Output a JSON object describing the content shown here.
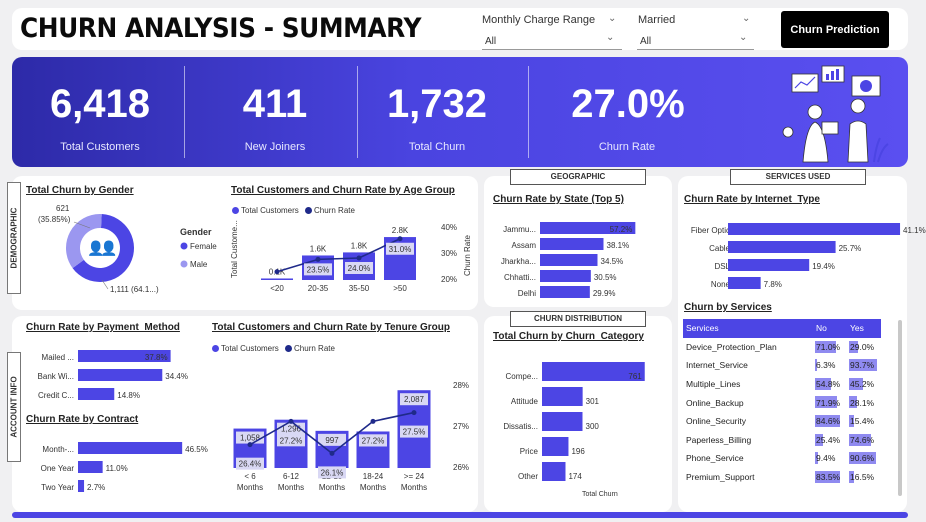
{
  "header": {
    "title": "CHURN ANALYSIS - SUMMARY",
    "slicer1_label": "Monthly Charge Range",
    "slicer1_value": "All",
    "slicer2_label": "Married",
    "slicer2_value": "All",
    "button_label": "Churn Prediction"
  },
  "kpis": [
    {
      "value": "6,418",
      "label": "Total Customers"
    },
    {
      "value": "411",
      "label": "New Joiners"
    },
    {
      "value": "1,732",
      "label": "Total Churn"
    },
    {
      "value": "27.0%",
      "label": "Churn Rate"
    }
  ],
  "sections": {
    "demographic": "DEMOGRAPHIC",
    "account_info": "ACCOUNT INFO",
    "geographic": "GEOGRAPHIC",
    "services_used": "SERVICES USED",
    "churn_distribution": "CHURN DISTRIBUTION"
  },
  "chart_data": [
    {
      "id": "gender",
      "type": "pie",
      "title": "Total Churn by Gender",
      "legend_title": "Gender",
      "categories": [
        "Female",
        "Male"
      ],
      "values": [
        1111,
        621
      ],
      "labels": [
        "1,111 (64.1...)",
        "621\n(35.85%)"
      ],
      "colors": [
        "#4c45e4",
        "#9b97f0"
      ]
    },
    {
      "id": "age",
      "type": "bar",
      "title": "Total Customers and Churn Rate by Age Group",
      "ylabel": "Total Custome...",
      "y2label": "Churn Rate",
      "categories": [
        "<20",
        "20-35",
        "35-50",
        ">50"
      ],
      "series": [
        {
          "name": "Total Customers",
          "values": [
            100,
            1600,
            1800,
            2800
          ],
          "labels": [
            "0.1K",
            "1.6K",
            "1.8K",
            "2.8K"
          ]
        },
        {
          "name": "Churn Rate",
          "values": [
            19,
            23.5,
            24.0,
            31.0
          ],
          "labels": [
            "",
            "23.5%",
            "24.0%",
            "31.0%"
          ]
        }
      ],
      "y2ticks": [
        "40%",
        "30%",
        "20%"
      ],
      "ylim": [
        0,
        3000
      ]
    },
    {
      "id": "payment",
      "type": "bar",
      "title": "Churn Rate by Payment_Method",
      "categories": [
        "Mailed ...",
        "Bank Wi...",
        "Credit C..."
      ],
      "values": [
        37.8,
        34.4,
        14.8
      ],
      "labels": [
        "37.8%",
        "34.4%",
        "14.8%"
      ]
    },
    {
      "id": "contract",
      "type": "bar",
      "title": "Churn Rate by Contract",
      "categories": [
        "Month-...",
        "One Year",
        "Two Year"
      ],
      "values": [
        46.5,
        11.0,
        2.7
      ],
      "labels": [
        "46.5%",
        "11.0%",
        "2.7%"
      ]
    },
    {
      "id": "tenure",
      "type": "bar",
      "title": "Total Customers and Churn Rate by Tenure Group",
      "categories": [
        "< 6\nMonths",
        "6-12\nMonths",
        "12-18\nMonths",
        "18-24\nMonths",
        ">= 24\nMonths"
      ],
      "series": [
        {
          "name": "Total Customers",
          "values": [
            1058,
            1296,
            997,
            980,
            2087
          ],
          "labels": [
            "1,058",
            "1,296",
            "997",
            "980",
            "2,087"
          ]
        },
        {
          "name": "Churn Rate",
          "values": [
            26.4,
            27.2,
            26.1,
            27.2,
            27.5
          ],
          "labels": [
            "26.4%",
            "27.2%",
            "26.1%",
            "27.2%",
            "27.5%"
          ]
        }
      ],
      "y2ticks": [
        "28%",
        "27%",
        "26%"
      ],
      "ylim": [
        0,
        2200
      ]
    },
    {
      "id": "state",
      "type": "bar",
      "title": "Churn Rate by State (Top 5)",
      "categories": [
        "Jammu...",
        "Assam",
        "Jharkha...",
        "Chhatti...",
        "Delhi"
      ],
      "values": [
        57.2,
        38.1,
        34.5,
        30.5,
        29.9
      ],
      "labels": [
        "57.2%",
        "38.1%",
        "34.5%",
        "30.5%",
        "29.9%"
      ]
    },
    {
      "id": "churn_category",
      "type": "bar",
      "title": "Total Churn by Churn_Category",
      "xlabel": "Total Churn",
      "categories": [
        "Compe...",
        "Attitude",
        "Dissatis...",
        "Price",
        "Other"
      ],
      "values": [
        761,
        301,
        300,
        196,
        174
      ],
      "labels": [
        "761",
        "301",
        "300",
        "196",
        "174"
      ]
    },
    {
      "id": "internet",
      "type": "bar",
      "title": "Churn Rate by Internet_Type",
      "categories": [
        "Fiber Optic",
        "Cable",
        "DSL",
        "None"
      ],
      "values": [
        41.1,
        25.7,
        19.4,
        7.8
      ],
      "labels": [
        "41.1%",
        "25.7%",
        "19.4%",
        "7.8%"
      ]
    },
    {
      "id": "services",
      "type": "table",
      "title": "Churn by Services",
      "columns": [
        "Services",
        "No",
        "Yes"
      ],
      "rows": [
        {
          "service": "Device_Protection_Plan",
          "no": 71.0,
          "yes": 29.0
        },
        {
          "service": "Internet_Service",
          "no": 6.3,
          "yes": 93.7
        },
        {
          "service": "Multiple_Lines",
          "no": 54.8,
          "yes": 45.2
        },
        {
          "service": "Online_Backup",
          "no": 71.9,
          "yes": 28.1
        },
        {
          "service": "Online_Security",
          "no": 84.6,
          "yes": 15.4
        },
        {
          "service": "Paperless_Billing",
          "no": 25.4,
          "yes": 74.6
        },
        {
          "service": "Phone_Service",
          "no": 9.4,
          "yes": 90.6
        },
        {
          "service": "Premium_Support",
          "no": 83.5,
          "yes": 16.5
        }
      ]
    }
  ]
}
